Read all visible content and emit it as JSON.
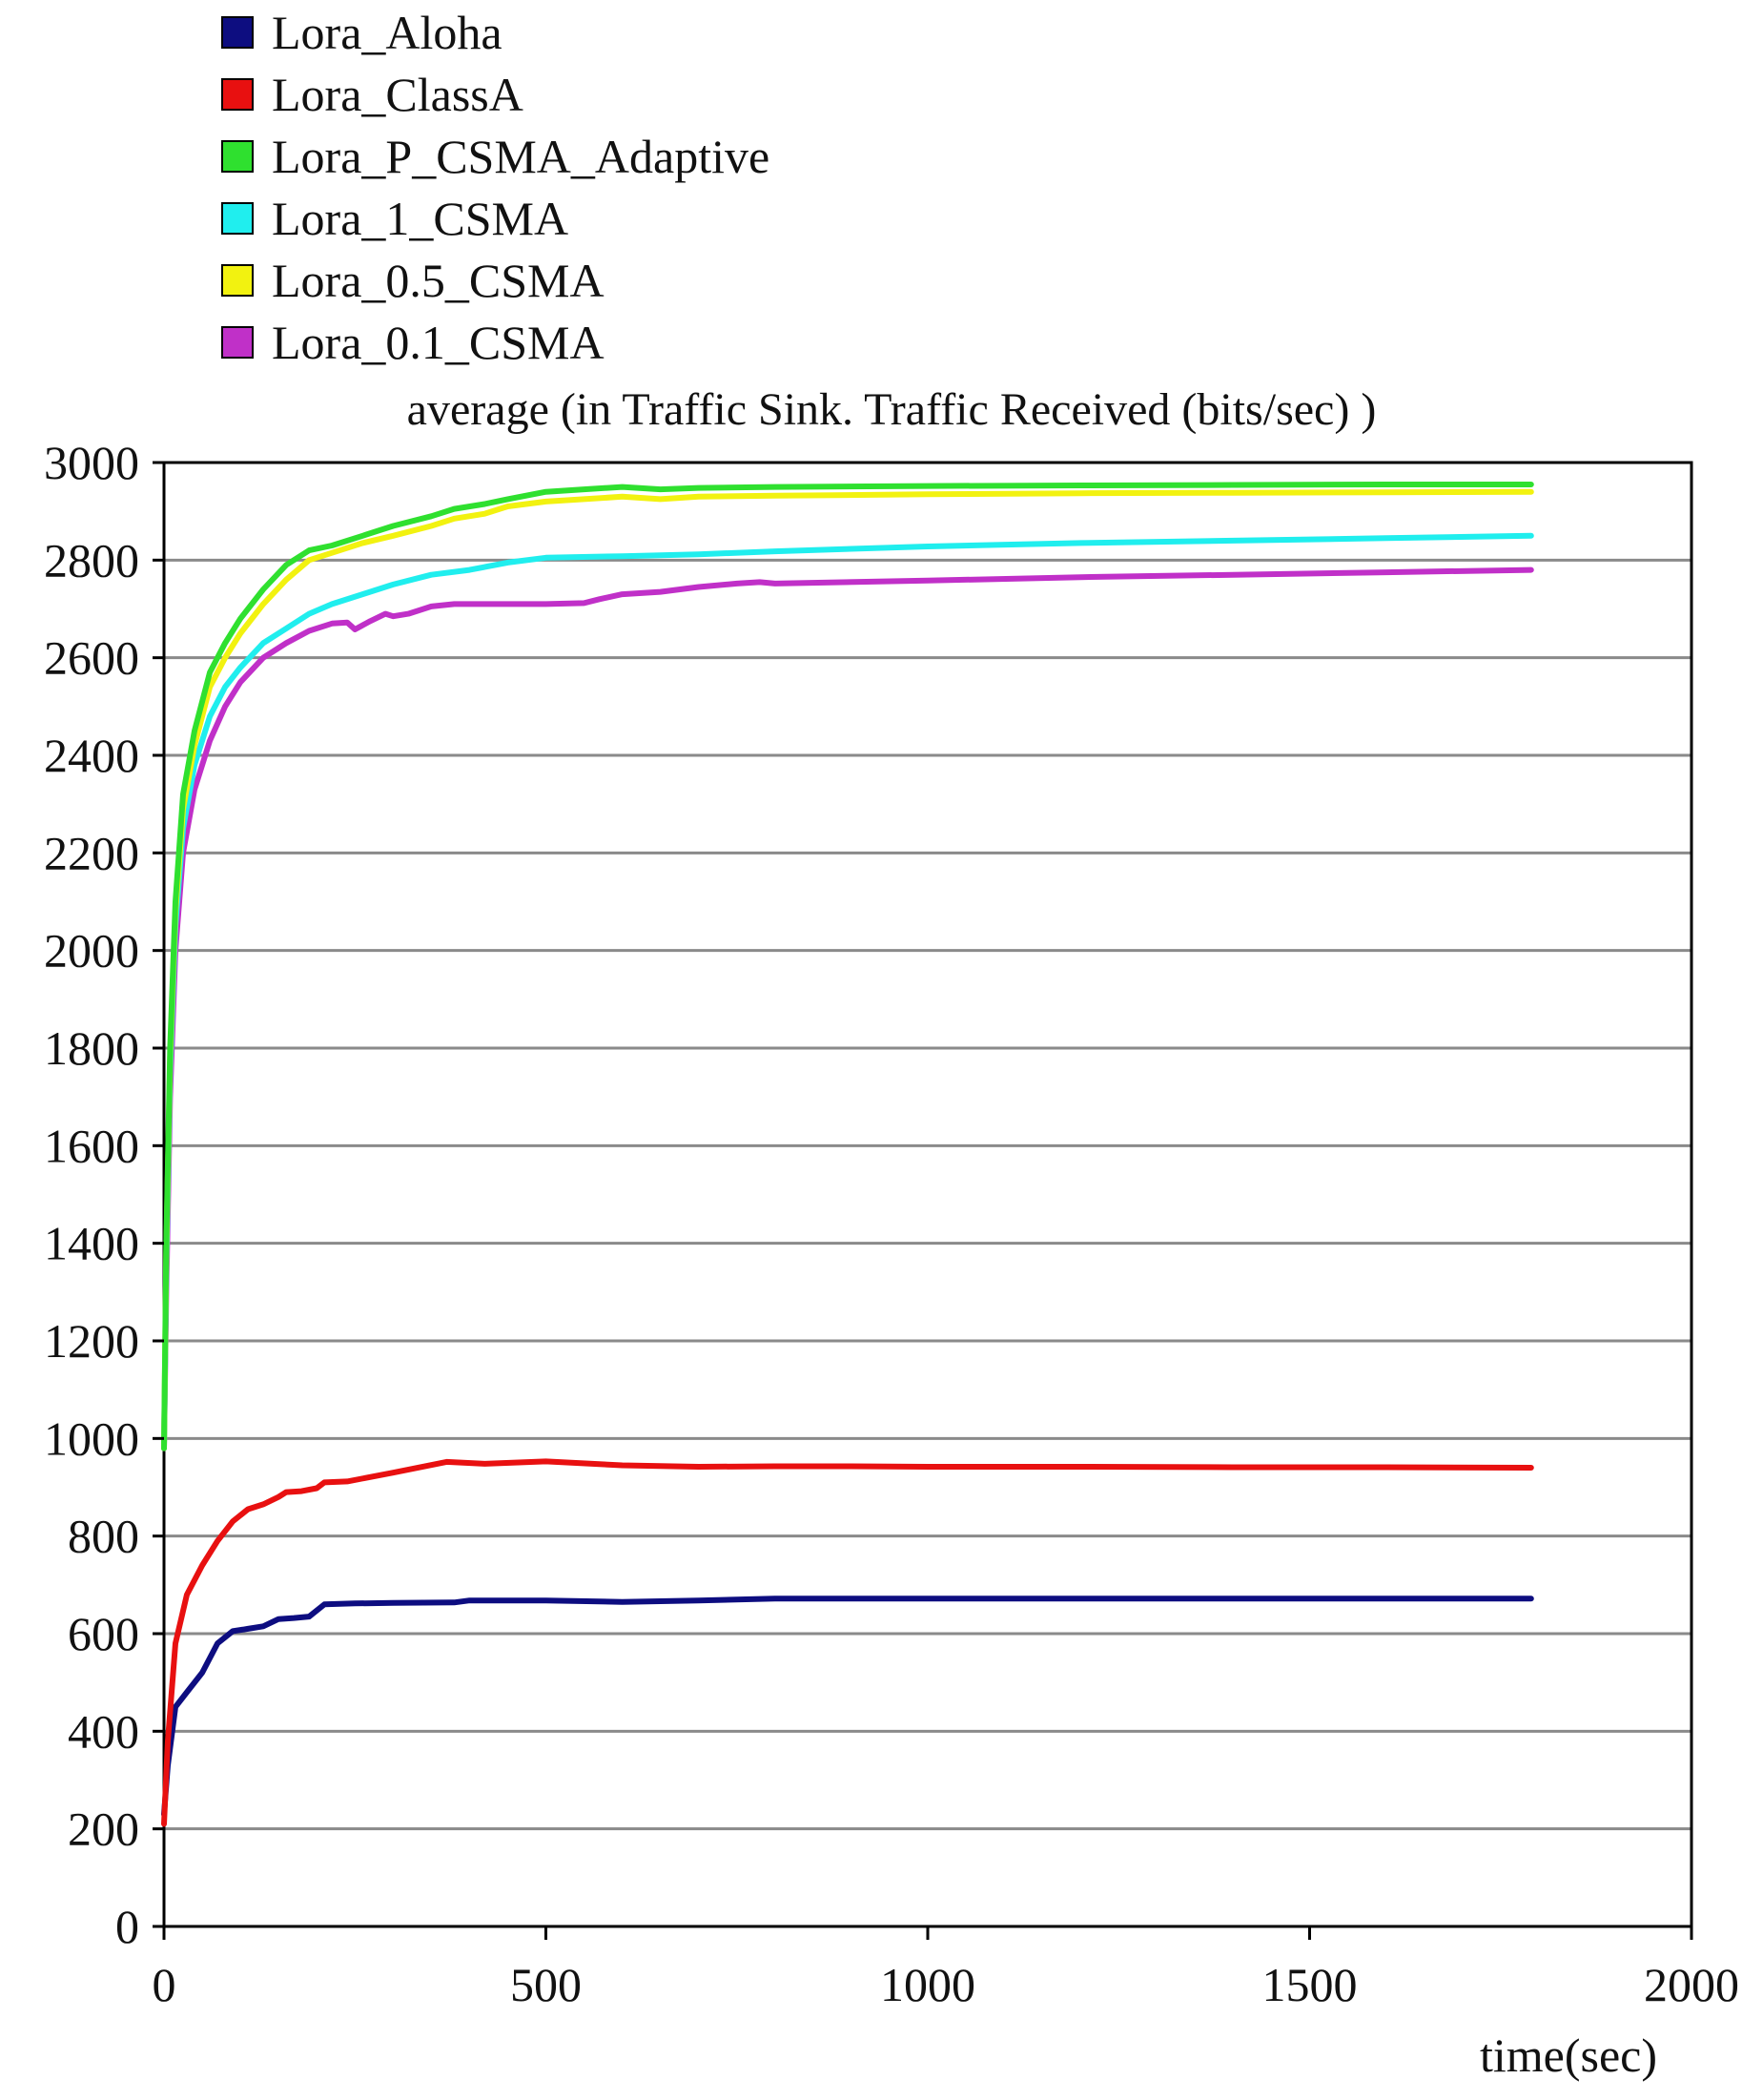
{
  "chart_data": {
    "type": "line",
    "title": "average (in  Traffic  Sink.  Traffic  Received (bits/sec) )",
    "xlabel": "time(sec)",
    "ylabel": "",
    "xlim": [
      0,
      2000
    ],
    "ylim": [
      0,
      3000
    ],
    "x_ticks": [
      "0",
      "500",
      "1000",
      "1500",
      "2000"
    ],
    "y_ticks": [
      "0",
      "200",
      "400",
      "600",
      "800",
      "1000",
      "1200",
      "1400",
      "1600",
      "1800",
      "2000",
      "2200",
      "2400",
      "2600",
      "2800",
      "3000"
    ],
    "grid": true,
    "legend_position": "top-left",
    "series": [
      {
        "name": "Lora_Aloha",
        "color": "#0d0d80",
        "x": [
          0,
          5,
          15,
          30,
          50,
          70,
          90,
          110,
          130,
          150,
          170,
          190,
          210,
          250,
          300,
          380,
          400,
          500,
          600,
          700,
          800,
          900,
          1000,
          1200,
          1400,
          1600,
          1790
        ],
        "y": [
          230,
          330,
          450,
          480,
          520,
          580,
          605,
          610,
          615,
          630,
          632,
          635,
          660,
          662,
          663,
          664,
          668,
          668,
          665,
          668,
          672,
          672,
          672,
          672,
          672,
          672,
          672
        ]
      },
      {
        "name": "Lora_ClassA",
        "color": "#e81010",
        "x": [
          0,
          5,
          15,
          30,
          50,
          70,
          90,
          110,
          130,
          150,
          160,
          180,
          200,
          210,
          240,
          300,
          370,
          420,
          500,
          600,
          700,
          800,
          900,
          1000,
          1200,
          1400,
          1600,
          1790
        ],
        "y": [
          210,
          380,
          580,
          680,
          740,
          790,
          830,
          855,
          865,
          880,
          890,
          892,
          898,
          910,
          912,
          930,
          952,
          948,
          953,
          945,
          942,
          943,
          943,
          942,
          942,
          941,
          941,
          940
        ]
      },
      {
        "name": "Lora_P_CSMA_Adaptive",
        "color": "#2fe02f",
        "x": [
          0,
          3,
          8,
          15,
          25,
          40,
          60,
          80,
          100,
          130,
          160,
          190,
          220,
          260,
          300,
          350,
          380,
          420,
          450,
          500,
          550,
          600,
          650,
          700,
          800,
          1000,
          1200,
          1400,
          1600,
          1790
        ],
        "y": [
          980,
          1400,
          1800,
          2100,
          2320,
          2450,
          2570,
          2630,
          2680,
          2740,
          2790,
          2820,
          2830,
          2850,
          2870,
          2890,
          2905,
          2915,
          2925,
          2940,
          2945,
          2950,
          2945,
          2948,
          2950,
          2952,
          2953,
          2954,
          2955,
          2955
        ]
      },
      {
        "name": "Lora_1_CSMA",
        "color": "#20eeee",
        "x": [
          0,
          3,
          8,
          15,
          25,
          40,
          60,
          80,
          100,
          130,
          160,
          190,
          220,
          260,
          300,
          350,
          400,
          450,
          500,
          600,
          700,
          800,
          1000,
          1200,
          1400,
          1600,
          1790
        ],
        "y": [
          980,
          1350,
          1750,
          2050,
          2250,
          2380,
          2480,
          2540,
          2580,
          2630,
          2660,
          2690,
          2710,
          2730,
          2750,
          2770,
          2780,
          2795,
          2805,
          2808,
          2812,
          2818,
          2828,
          2835,
          2840,
          2845,
          2850
        ]
      },
      {
        "name": "Lora_0.5_CSMA",
        "color": "#f2f210",
        "x": [
          0,
          3,
          8,
          15,
          25,
          40,
          60,
          80,
          100,
          130,
          160,
          190,
          220,
          260,
          300,
          350,
          380,
          420,
          450,
          500,
          550,
          600,
          650,
          700,
          800,
          1000,
          1200,
          1400,
          1600,
          1790
        ],
        "y": [
          980,
          1380,
          1780,
          2080,
          2290,
          2420,
          2540,
          2600,
          2650,
          2710,
          2760,
          2800,
          2815,
          2835,
          2850,
          2870,
          2885,
          2895,
          2910,
          2920,
          2925,
          2930,
          2925,
          2930,
          2932,
          2935,
          2937,
          2938,
          2939,
          2940
        ]
      },
      {
        "name": "Lora_0.1_CSMA",
        "color": "#c030c8",
        "x": [
          0,
          3,
          8,
          15,
          25,
          40,
          60,
          80,
          100,
          130,
          160,
          190,
          220,
          240,
          250,
          270,
          290,
          300,
          320,
          350,
          380,
          400,
          450,
          500,
          550,
          570,
          600,
          650,
          700,
          750,
          780,
          800,
          1000,
          1200,
          1400,
          1600,
          1790
        ],
        "y": [
          980,
          1300,
          1700,
          2000,
          2200,
          2330,
          2430,
          2500,
          2550,
          2600,
          2630,
          2655,
          2670,
          2672,
          2658,
          2675,
          2690,
          2685,
          2690,
          2705,
          2710,
          2710,
          2710,
          2710,
          2712,
          2720,
          2730,
          2735,
          2745,
          2752,
          2755,
          2752,
          2758,
          2765,
          2770,
          2775,
          2780
        ]
      }
    ]
  }
}
